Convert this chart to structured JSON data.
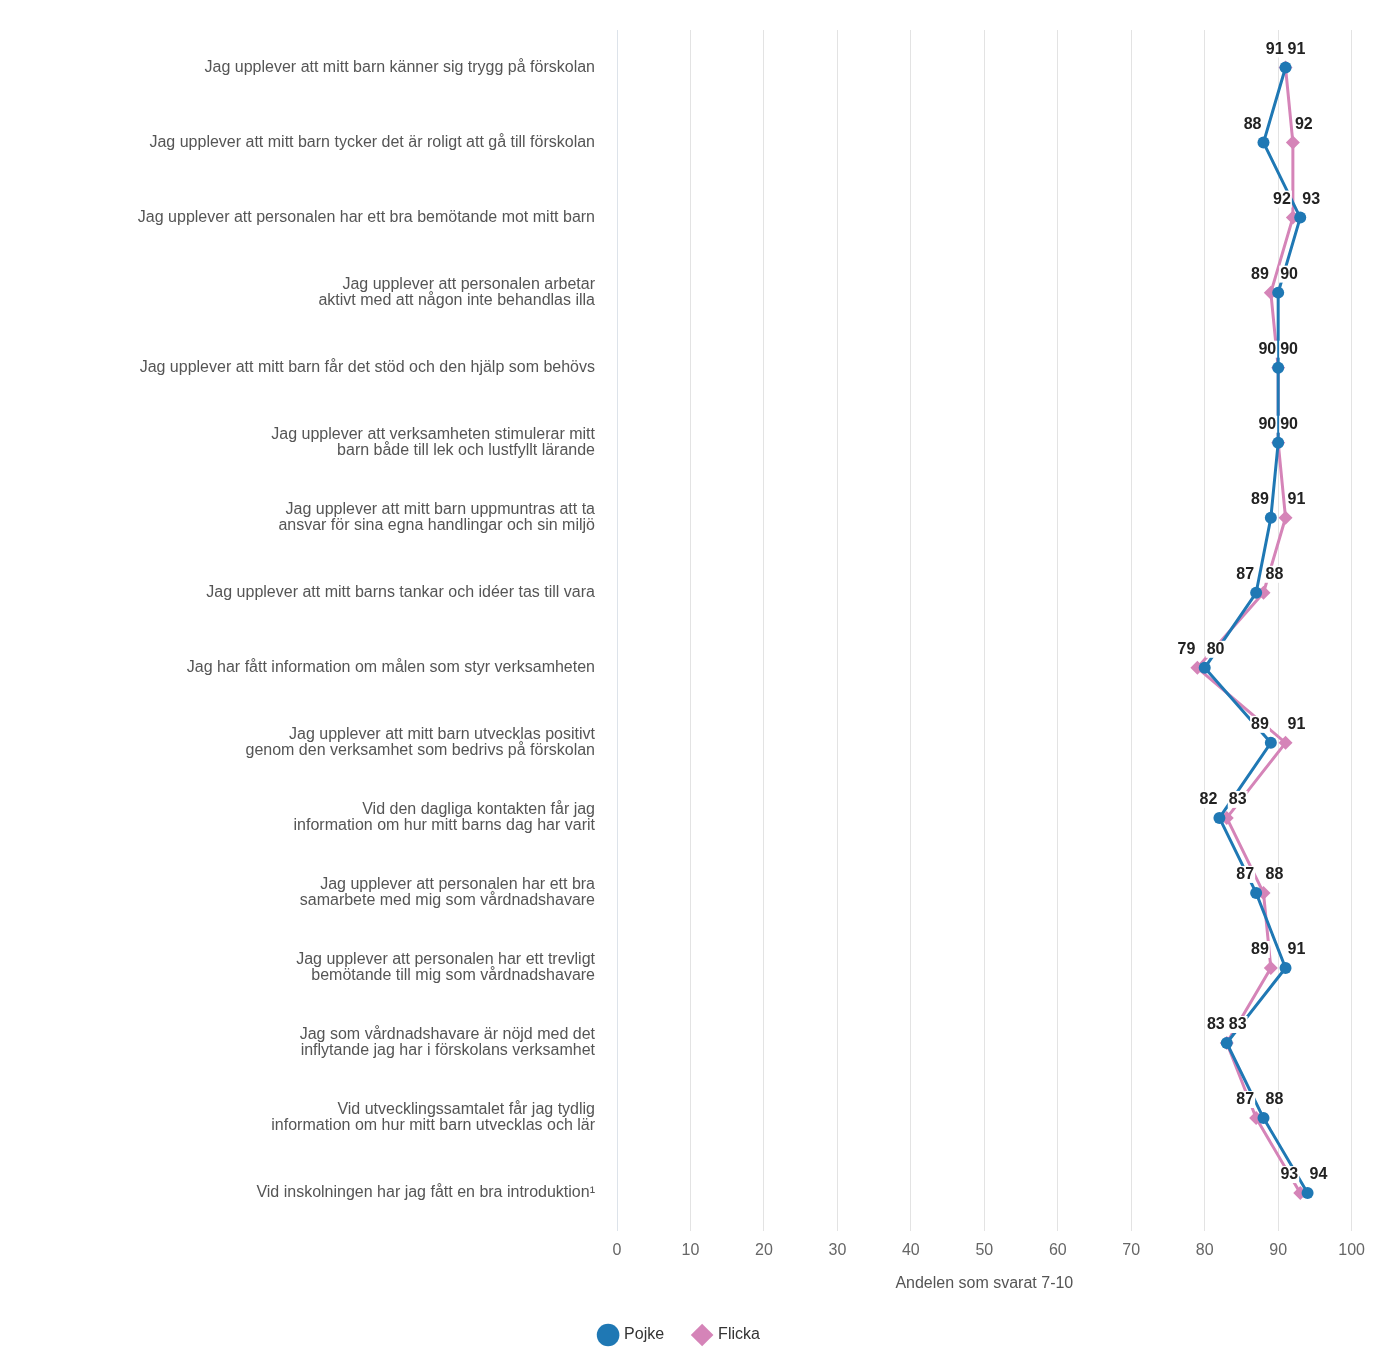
{
  "chart_data": {
    "type": "line",
    "orientation": "horizontal",
    "xlabel": "Andelen som svarat 7-10",
    "categories": [
      "Jag upplever att mitt barn känner sig trygg på förskolan",
      "Jag upplever att mitt barn tycker det är roligt att gå till förskolan",
      "Jag upplever att personalen har ett bra bemötande mot mitt barn",
      "Jag upplever att personalen arbetar\naktivt med att någon inte behandlas illa",
      "Jag upplever att mitt barn får det stöd och den hjälp som behövs",
      "Jag upplever att verksamheten stimulerar mitt\nbarn både till lek och lustfyllt lärande",
      "Jag upplever att mitt barn uppmuntras att ta\nansvar för sina egna handlingar och sin miljö",
      "Jag upplever att mitt barns tankar och idéer tas till vara",
      "Jag har fått information om målen som styr verksamheten",
      "Jag upplever att mitt barn utvecklas positivt\ngenom den verksamhet som bedrivs på förskolan",
      "Vid den dagliga kontakten får jag\ninformation om hur mitt barns dag har varit",
      "Jag upplever att personalen har ett bra\nsamarbete med mig som vårdnadshavare",
      "Jag upplever att personalen har ett trevligt\nbemötande till mig som vårdnadshavare",
      "Jag som vårdnadshavare är nöjd med det\ninflytande jag har i förskolans verksamhet",
      "Vid utvecklingssamtalet får jag tydlig\ninformation om hur mitt barn utvecklas och lär",
      "Vid inskolningen har jag fått en bra introduktion¹"
    ],
    "series": [
      {
        "name": "Pojke",
        "color": "#1f78b4",
        "marker": "circle",
        "values": [
          91,
          88,
          93,
          90,
          90,
          90,
          89,
          87,
          80,
          89,
          82,
          87,
          91,
          83,
          88,
          94
        ]
      },
      {
        "name": "Flicka",
        "color": "#d584b8",
        "marker": "diamond",
        "values": [
          91,
          92,
          92,
          89,
          90,
          90,
          91,
          88,
          79,
          91,
          83,
          88,
          89,
          83,
          87,
          93
        ]
      }
    ],
    "xlim": [
      0,
      100
    ],
    "xticks": [
      0,
      10,
      20,
      30,
      40,
      50,
      60,
      70,
      80,
      90,
      100
    ],
    "grid": "x",
    "legend": "bottom",
    "data_labels": true,
    "line_style": "solid"
  }
}
